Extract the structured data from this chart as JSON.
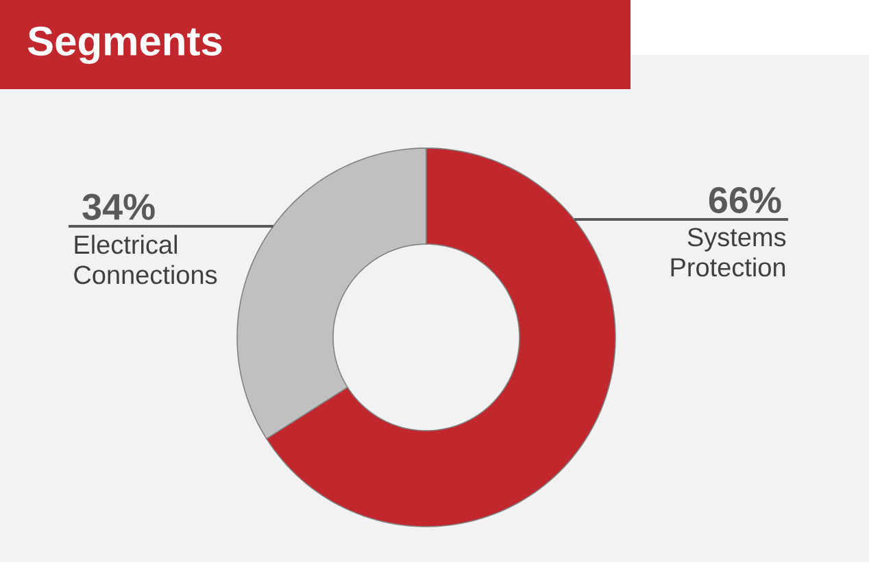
{
  "chart_data": {
    "type": "donut",
    "title": "Segments",
    "categories": [
      "Electrical Connections",
      "Systems Protection"
    ],
    "values": [
      34,
      66
    ],
    "value_labels": [
      "34%",
      "66%"
    ],
    "colors": [
      "#c0c0c0",
      "#c1272d"
    ]
  }
}
